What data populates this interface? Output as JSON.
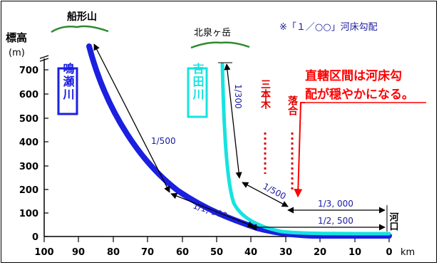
{
  "title_note": "※「１／○○」河床勾配",
  "y_axis": {
    "label_main": "標高",
    "label_unit": "(m)",
    "ticks": [
      "0",
      "100",
      "200",
      "300",
      "400",
      "500",
      "600",
      "700"
    ]
  },
  "x_axis": {
    "unit": "km",
    "ticks": [
      "100",
      "90",
      "80",
      "70",
      "60",
      "50",
      "40",
      "30",
      "20",
      "10",
      "0"
    ]
  },
  "mountains": {
    "funagata": "船形山",
    "kitaizumi": "北泉ヶ岳"
  },
  "rivers": {
    "naruse": "鳴瀬川",
    "yoshida": "吉田川",
    "colors": {
      "naruse": "#1b1fe0",
      "yoshida": "#16e3e0"
    }
  },
  "confluences": {
    "sanbongi": "三本木",
    "ochiai": "落合"
  },
  "gradients": {
    "g500_upper": "1/500",
    "g1500": "1/1, 500",
    "g300": "1/300",
    "g500_yoshida": "1/500",
    "g3000": "1/3, 000",
    "g2500": "1/2, 500"
  },
  "mouth_label": "河口",
  "callout": {
    "line1": "直轄区間は河床勾",
    "line2": "配が穏やかになる。",
    "color": "#ff0000"
  }
}
